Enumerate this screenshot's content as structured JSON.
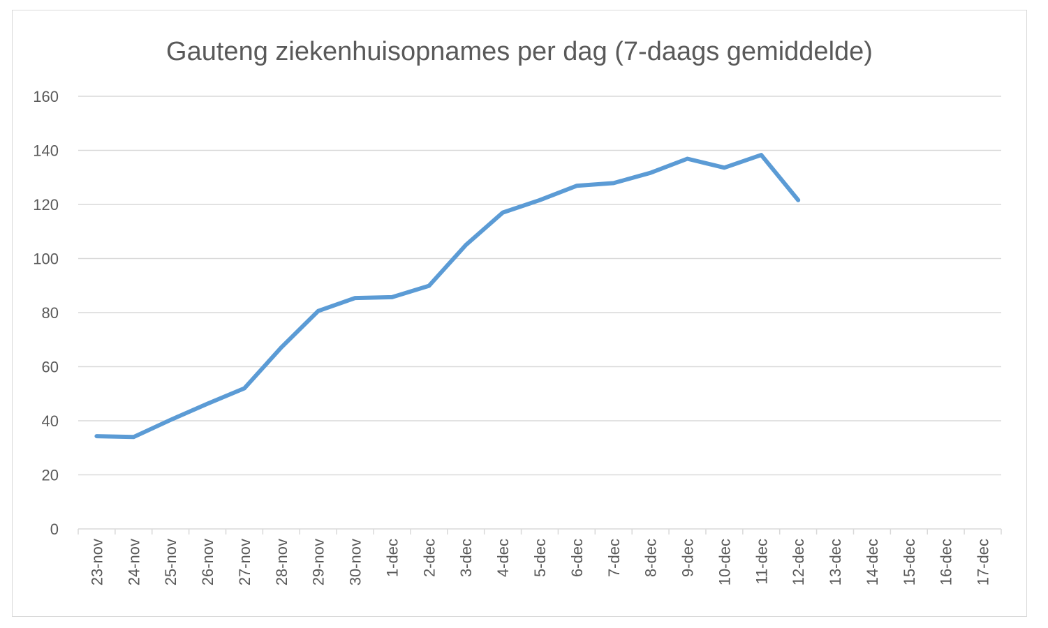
{
  "chart_data": {
    "type": "line",
    "title": "Gauteng ziekenhuisopnames per dag (7-daags gemiddelde)",
    "xlabel": "",
    "ylabel": "",
    "categories": [
      "23-nov",
      "24-nov",
      "25-nov",
      "26-nov",
      "27-nov",
      "28-nov",
      "29-nov",
      "30-nov",
      "1-dec",
      "2-dec",
      "3-dec",
      "4-dec",
      "5-dec",
      "6-dec",
      "7-dec",
      "8-dec",
      "9-dec",
      "10-dec",
      "11-dec",
      "12-dec",
      "13-dec",
      "14-dec",
      "15-dec",
      "16-dec",
      "17-dec"
    ],
    "series": [
      {
        "values": [
          34.3,
          34.0,
          40.3,
          46.3,
          52.0,
          67.1,
          80.6,
          85.4,
          85.7,
          89.9,
          105.0,
          117.0,
          121.6,
          126.9,
          127.9,
          131.7,
          136.9,
          133.6,
          138.3,
          121.6,
          null,
          null,
          null,
          null,
          null
        ],
        "color": "#5b9bd5"
      }
    ],
    "ylim": [
      0,
      160
    ],
    "yticks": [
      0,
      20,
      40,
      60,
      80,
      100,
      120,
      140,
      160
    ],
    "grid": true,
    "legend": "none"
  }
}
